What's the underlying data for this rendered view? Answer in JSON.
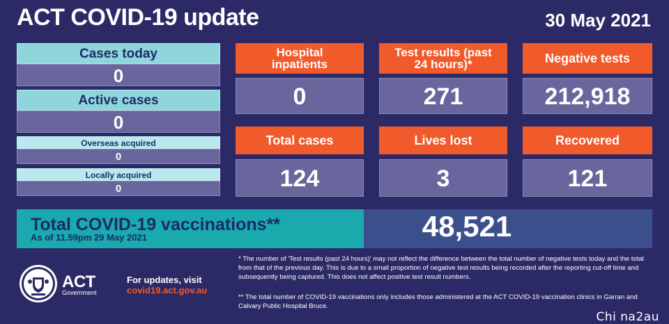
{
  "header": {
    "title": "ACT COVID-19 update",
    "date": "30 May 2021"
  },
  "left_panel": {
    "cases_today": {
      "label": "Cases today",
      "value": "0"
    },
    "active_cases": {
      "label": "Active cases",
      "value": "0"
    },
    "overseas_acquired": {
      "label": "Overseas acquired",
      "value": "0"
    },
    "locally_acquired": {
      "label": "Locally acquired",
      "value": "0"
    }
  },
  "tiles": {
    "hospital": {
      "label": "Hospital inpatients",
      "value": "0"
    },
    "test_results": {
      "label": "Test results (past 24 hours)*",
      "value": "271"
    },
    "negative_tests": {
      "label": "Negative tests",
      "value": "212,918"
    },
    "total_cases": {
      "label": "Total cases",
      "value": "124"
    },
    "lives_lost": {
      "label": "Lives lost",
      "value": "3"
    },
    "recovered": {
      "label": "Recovered",
      "value": "121"
    }
  },
  "vaccinations": {
    "title": "Total COVID-19 vaccinations**",
    "as_of": "As of 11.59pm 29 May 2021",
    "value": "48,521"
  },
  "footer": {
    "logo_text": "ACT",
    "logo_sub": "Government",
    "updates_line1": "For updates, visit",
    "updates_line2": "covid19.act.gov.au",
    "footnote1": "* The number of 'Test results (past 24 hours)' may not reflect the difference between the total number of negative tests today and the total from that of the previous day. This is due to a small proportion of negative test results being recorded after the reporting cut-off time and subsequently being captured. This does not affect positive test result numbers.",
    "footnote2": "** The total number of COVID-19 vaccinations only includes those administered at the ACT COVID-19 vaccination clinics in Garran and Calvary Public Hospital Bruce."
  },
  "watermark": "Chi na2au",
  "colors": {
    "background": "#2b2a66",
    "orange": "#f15a2b",
    "teal": "#8fd6dc",
    "value_box": "#68669c",
    "vaccination_teal": "#1aa9ad"
  }
}
